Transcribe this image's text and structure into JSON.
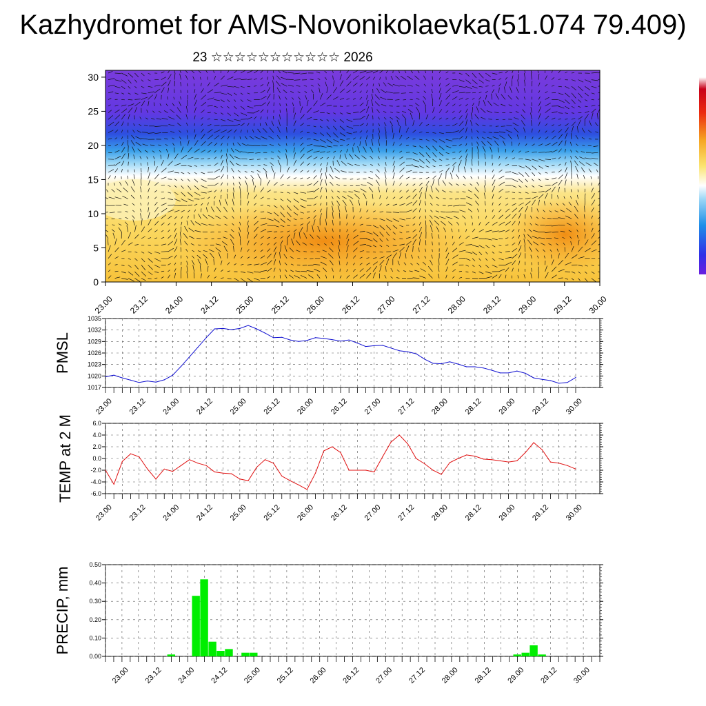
{
  "title": "Kazhydromet for AMS-Novonikolaevka(51.074 79.409)",
  "subtitle": "23 ☆☆☆☆☆☆☆☆☆☆☆ 2026",
  "colors": {
    "pmsl_line": "#1010d0",
    "temp_line": "#e01010",
    "precip_bar": "#00ee00"
  },
  "chart_data": [
    {
      "type": "heatmap",
      "name": "vertical-cross-section",
      "xlabel": "",
      "ylabel": "",
      "x_tick_labels": [
        "23.00",
        "23.12",
        "24.00",
        "24.12",
        "25.00",
        "25.12",
        "26.00",
        "26.12",
        "27.00",
        "27.12",
        "28.00",
        "28.12",
        "29.00",
        "29.12",
        "30.00"
      ],
      "y_ticks": [
        0,
        5,
        10,
        15,
        20,
        25,
        30
      ],
      "ylim": [
        0,
        31
      ],
      "overlay": "wind vectors",
      "colorbar": "vertical, purple-blue-white-yellow-orange-red"
    },
    {
      "type": "line",
      "name": "pmsl",
      "ylabel": "PMSL",
      "ylim": [
        1017,
        1035
      ],
      "y_ticks": [
        1017,
        1020,
        1023,
        1026,
        1029,
        1032,
        1035
      ],
      "x_tick_labels": [
        "23.00",
        "23.12",
        "24.00",
        "24.12",
        "25.00",
        "25.12",
        "26.00",
        "26.12",
        "27.00",
        "27.12",
        "28.00",
        "28.12",
        "29.00",
        "29.12",
        "30.00"
      ],
      "x_range": [
        0,
        168
      ],
      "x": [
        0,
        3,
        6,
        9,
        12,
        15,
        18,
        21,
        24,
        27,
        30,
        33,
        36,
        39,
        42,
        45,
        48,
        51,
        54,
        57,
        60,
        63,
        66,
        69,
        72,
        75,
        78,
        81,
        84,
        87,
        90,
        93,
        96,
        99,
        102,
        105,
        108,
        111,
        114,
        117,
        120,
        123,
        126,
        129,
        132,
        135,
        138,
        141,
        144,
        147,
        150,
        153,
        156,
        159,
        162,
        165,
        168
      ],
      "values": [
        1019.8,
        1020.2,
        1019.5,
        1018.9,
        1018.3,
        1018.7,
        1018.4,
        1019.0,
        1020.2,
        1022.5,
        1025.0,
        1027.5,
        1030.0,
        1032.3,
        1032.4,
        1032.1,
        1032.4,
        1033.2,
        1032.3,
        1031.2,
        1030.0,
        1030.1,
        1029.4,
        1029.0,
        1029.3,
        1030.0,
        1029.8,
        1029.5,
        1029.1,
        1029.4,
        1028.6,
        1027.7,
        1027.9,
        1028.0,
        1027.3,
        1026.6,
        1026.3,
        1025.8,
        1024.4,
        1023.3,
        1023.2,
        1023.7,
        1023.1,
        1022.4,
        1022.4,
        1022.1,
        1021.5,
        1020.8,
        1020.8,
        1021.3,
        1020.7,
        1019.5,
        1019.1,
        1018.8,
        1018.1,
        1018.3,
        1019.6
      ]
    },
    {
      "type": "line",
      "name": "temp-2m",
      "ylabel": "TEMP at 2 M",
      "ylim": [
        -6.0,
        6.0
      ],
      "y_tick_labels": [
        "6.0",
        "4.0",
        "2.0",
        "0.0",
        "-2.0",
        "-4.0",
        "-6.0"
      ],
      "x_tick_labels": [
        "23.00",
        "23.12",
        "24.00",
        "24.12",
        "25.00",
        "25.12",
        "26.00",
        "26.12",
        "27.00",
        "27.12",
        "28.00",
        "28.12",
        "29.00",
        "29.12",
        "30.00"
      ],
      "x_range": [
        0,
        168
      ],
      "x": [
        0,
        3,
        6,
        9,
        12,
        15,
        18,
        21,
        24,
        27,
        30,
        33,
        36,
        39,
        42,
        45,
        48,
        51,
        54,
        57,
        60,
        63,
        66,
        69,
        72,
        75,
        78,
        81,
        84,
        87,
        90,
        93,
        96,
        99,
        102,
        105,
        108,
        111,
        114,
        117,
        120,
        123,
        126,
        129,
        132,
        135,
        138,
        141,
        144,
        147,
        150,
        153,
        156,
        159,
        162,
        165,
        168
      ],
      "values": [
        -2.0,
        -4.4,
        -0.5,
        0.8,
        0.3,
        -1.8,
        -3.5,
        -1.8,
        -2.2,
        -1.2,
        -0.2,
        -0.8,
        -1.2,
        -2.3,
        -2.5,
        -2.6,
        -3.5,
        -3.8,
        -1.5,
        -0.2,
        -0.8,
        -3.0,
        -3.8,
        -4.5,
        -5.3,
        -2.5,
        1.3,
        2.0,
        1.0,
        -2.0,
        -2.0,
        -2.0,
        -2.3,
        0.3,
        2.8,
        4.0,
        2.5,
        0.0,
        -0.9,
        -2.0,
        -2.7,
        -0.7,
        0.0,
        0.6,
        0.4,
        -0.1,
        -0.2,
        -0.4,
        -0.6,
        -0.4,
        1.0,
        2.7,
        1.5,
        -0.6,
        -0.8,
        -1.2,
        -1.8
      ]
    },
    {
      "type": "bar",
      "name": "precip",
      "ylabel": "PRECIP, mm",
      "ylim": [
        0.0,
        0.5
      ],
      "y_tick_labels": [
        "0.50",
        "0.40",
        "0.30",
        "0.20",
        "0.10",
        "0.00"
      ],
      "x_tick_labels": [
        "23.00",
        "23.12",
        "24.00",
        "24.12",
        "25.00",
        "25.12",
        "26.00",
        "26.12",
        "27.00",
        "27.12",
        "28.00",
        "28.12",
        "29.00",
        "29.12",
        "30.00"
      ],
      "x_range": [
        -6,
        174
      ],
      "x": [
        0,
        3,
        6,
        9,
        12,
        15,
        18,
        21,
        24,
        27,
        30,
        33,
        36,
        39,
        42,
        45,
        48,
        51,
        54,
        57,
        60,
        63,
        66,
        69,
        72,
        75,
        78,
        81,
        84,
        87,
        90,
        93,
        96,
        99,
        102,
        105,
        108,
        111,
        114,
        117,
        120,
        123,
        126,
        129,
        132,
        135,
        138,
        141,
        144,
        147,
        150,
        153,
        156,
        159,
        162,
        165,
        168
      ],
      "values": [
        0,
        0,
        0,
        0,
        0,
        0,
        0.01,
        0,
        0,
        0.33,
        0.42,
        0.08,
        0.03,
        0.04,
        0,
        0.02,
        0.02,
        0,
        0,
        0,
        0,
        0,
        0,
        0,
        0,
        0,
        0,
        0,
        0,
        0,
        0,
        0,
        0,
        0,
        0,
        0,
        0,
        0,
        0,
        0,
        0,
        0,
        0,
        0,
        0,
        0,
        0,
        0,
        0.01,
        0.02,
        0.06,
        0.01,
        0,
        0,
        0,
        0,
        0
      ]
    }
  ]
}
